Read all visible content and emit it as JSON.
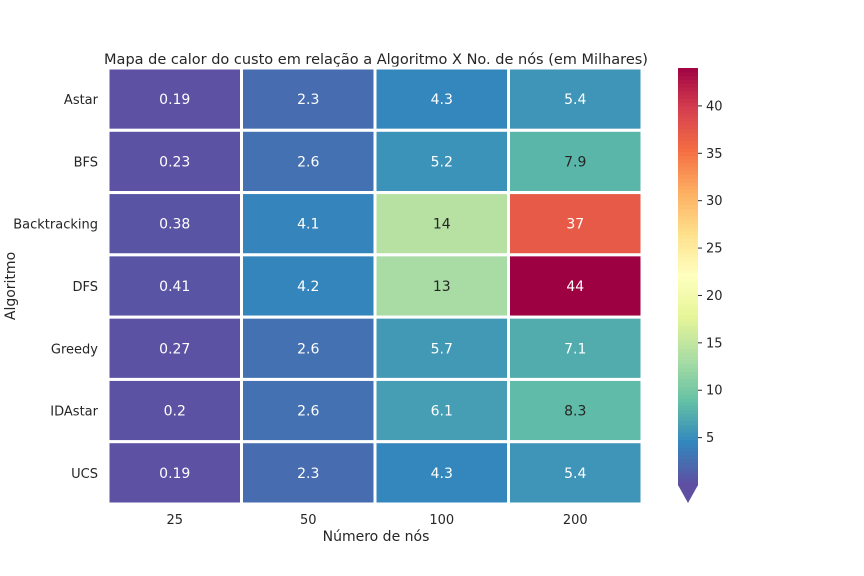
{
  "chart_data": {
    "type": "heatmap",
    "title": "Mapa de calor do custo em relação a Algoritmo X No. de nós (em Milhares)",
    "xlabel": "Número de nós",
    "ylabel": "Algoritmo",
    "x_categories": [
      "25",
      "50",
      "100",
      "200"
    ],
    "y_categories": [
      "Astar",
      "BFS",
      "Backtracking",
      "DFS",
      "Greedy",
      "IDAstar",
      "UCS"
    ],
    "values": [
      [
        0.19,
        2.3,
        4.3,
        5.4
      ],
      [
        0.23,
        2.6,
        5.2,
        7.9
      ],
      [
        0.38,
        4.1,
        14,
        37
      ],
      [
        0.41,
        4.2,
        13,
        44
      ],
      [
        0.27,
        2.6,
        5.7,
        7.1
      ],
      [
        0.2,
        2.6,
        6.1,
        8.3
      ],
      [
        0.19,
        2.3,
        4.3,
        5.4
      ]
    ],
    "colorbar": {
      "colormap": "Spectral_r",
      "range": [
        0,
        44
      ],
      "ticks": [
        "5",
        "10",
        "15",
        "20",
        "25",
        "30",
        "35",
        "40"
      ],
      "extend": "min"
    },
    "grid": false,
    "legend": "colorbar-right"
  }
}
